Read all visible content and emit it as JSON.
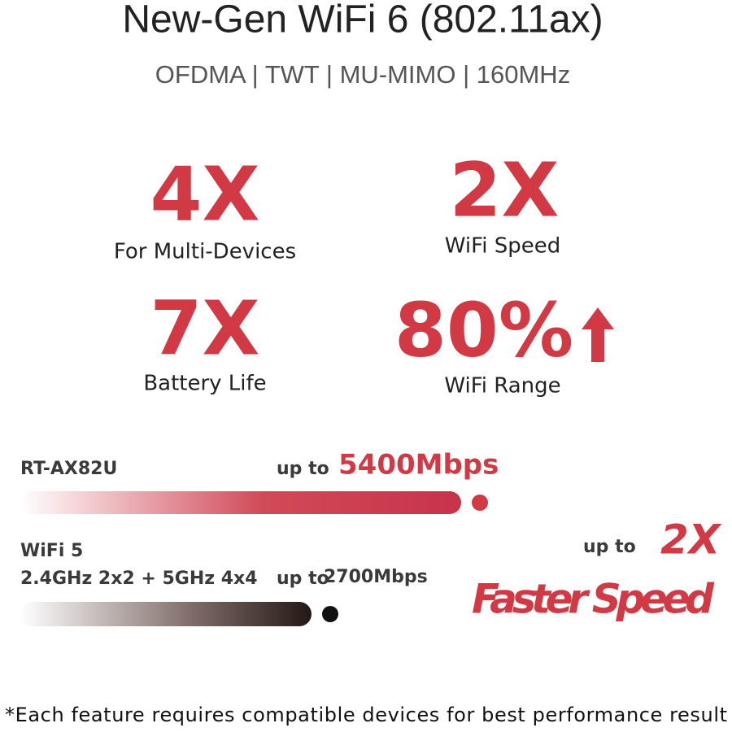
{
  "header": {
    "title": "New-Gen WiFi 6 (802.11ax)",
    "subtitle": "OFDMA | TWT | MU-MIMO | 160MHz"
  },
  "stats": [
    {
      "value": "4X",
      "label": "For Multi-Devices"
    },
    {
      "value": "2X",
      "label": "WiFi Speed"
    },
    {
      "value": "7X",
      "label": "Battery Life"
    },
    {
      "value": "80%",
      "label": "WiFi Range"
    }
  ],
  "comparison": {
    "product": {
      "name": "RT-AX82U",
      "prefix": "up to",
      "speed": "5400Mbps"
    },
    "baseline": {
      "name": "WiFi 5",
      "detail": "2.4GHz 2x2 + 5GHz 4x4",
      "prefix": "up to",
      "speed": "2700Mbps"
    },
    "result": {
      "prefix": "up to",
      "value": "2X",
      "label": "Faster Speed"
    }
  },
  "footnote": "*Each feature requires compatible devices for best performance result"
}
